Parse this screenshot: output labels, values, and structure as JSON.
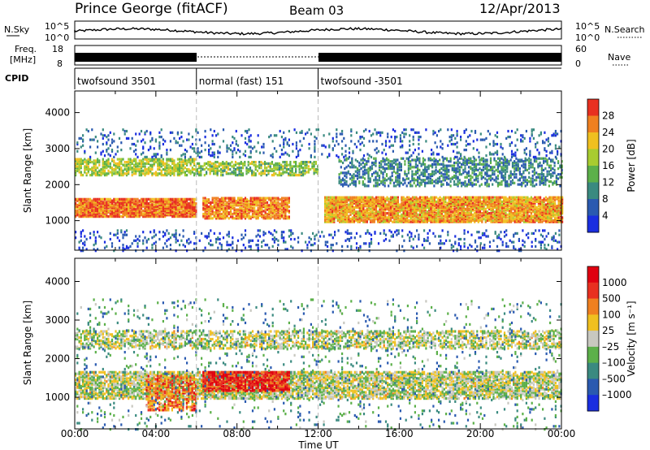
{
  "header": {
    "station": "Prince George (fitACF)",
    "beam": "Beam 03",
    "date": "12/Apr/2013"
  },
  "strips": {
    "nsky_label": "N.Sky",
    "nsky_ticks": [
      "10^5",
      "10^0"
    ],
    "nsearch_label": "N.Search",
    "freq_label_1": "Freq.",
    "freq_label_2": "[MHz]",
    "freq_ticks": [
      "18",
      "8"
    ],
    "nave_ticks": [
      "60",
      "0"
    ],
    "nave_label": "Nave",
    "cpid_label": "CPID",
    "cpid_segments": [
      {
        "label": "twofsound 3501",
        "start_h": 0,
        "end_h": 6.0
      },
      {
        "label": "normal (fast) 151",
        "start_h": 6.0,
        "end_h": 12.0
      },
      {
        "label": "twofsound -3501",
        "start_h": 12.0,
        "end_h": 24.0
      }
    ]
  },
  "chart_data": [
    {
      "type": "heatmap",
      "title": "Power",
      "ylabel": "Slant Range [km]",
      "xlabel": "Time UT",
      "xlim": [
        0,
        24
      ],
      "ylim": [
        180,
        4600
      ],
      "yticks": [
        "1000",
        "2000",
        "3000",
        "4000"
      ],
      "xticks": [
        "00:00",
        "04:00",
        "08:00",
        "12:00",
        "16:00",
        "20:00",
        "00:00"
      ],
      "colorbar": {
        "label": "Power [dB]",
        "ticks": [
          "4",
          "8",
          "12",
          "16",
          "20",
          "24",
          "28"
        ],
        "colors": [
          "#1a2ee0",
          "#2a5ab0",
          "#3a8a80",
          "#5cb04a",
          "#a8cc30",
          "#f0c020",
          "#f08020",
          "#e83020"
        ]
      },
      "bands": [
        {
          "name": "near",
          "t0": 0,
          "t1": 24,
          "r_low": 200,
          "r_high": 800,
          "level": 0.15,
          "density": 0.12
        },
        {
          "name": "main-f",
          "t0": 0,
          "t1": 6,
          "r_low": 1150,
          "r_high": 1650,
          "level": 0.85,
          "density": 0.9
        },
        {
          "name": "main-f2",
          "t0": 12.3,
          "t1": 24,
          "r_low": 1000,
          "r_high": 1700,
          "level": 0.75,
          "density": 0.85
        },
        {
          "name": "day-e",
          "t0": 6.3,
          "t1": 10.6,
          "r_low": 1100,
          "r_high": 1700,
          "level": 0.8,
          "density": 0.75
        },
        {
          "name": "far1",
          "t0": 0,
          "t1": 6,
          "r_low": 2300,
          "r_high": 2750,
          "level": 0.55,
          "density": 0.6
        },
        {
          "name": "far2",
          "t0": 6,
          "t1": 12,
          "r_low": 2300,
          "r_high": 2700,
          "level": 0.5,
          "density": 0.5
        },
        {
          "name": "far3",
          "t0": 13,
          "t1": 24,
          "r_low": 2000,
          "r_high": 2800,
          "level": 0.3,
          "density": 0.4
        },
        {
          "name": "sparse-top",
          "t0": 0,
          "t1": 24,
          "r_low": 2800,
          "r_high": 3600,
          "level": 0.2,
          "density": 0.12
        }
      ]
    },
    {
      "type": "heatmap",
      "title": "Velocity",
      "ylabel": "Slant Range [km]",
      "xlabel": "Time UT",
      "xlim": [
        0,
        24
      ],
      "ylim": [
        180,
        4600
      ],
      "yticks": [
        "1000",
        "2000",
        "3000",
        "4000"
      ],
      "xticks": [
        "00:00",
        "04:00",
        "08:00",
        "12:00",
        "16:00",
        "20:00",
        "00:00"
      ],
      "colorbar": {
        "label": "Velocity [m s⁻¹]",
        "ticks": [
          "1000",
          "500",
          "100",
          "25",
          "–25",
          "–100",
          "–500",
          "–1000"
        ],
        "colors": [
          "#1a2ee0",
          "#2a5ab0",
          "#3a8a80",
          "#5cb04a",
          "#c8c8c0",
          "#f0c020",
          "#f08020",
          "#e83020",
          "#e00010"
        ]
      },
      "bands": [
        {
          "name": "ground",
          "t0": 0,
          "t1": 24,
          "r_low": 1000,
          "r_high": 1700,
          "level": 0.5,
          "density": 0.7
        },
        {
          "name": "ground-far",
          "t0": 0,
          "t1": 24,
          "r_low": 2300,
          "r_high": 2750,
          "level": 0.5,
          "density": 0.5
        },
        {
          "name": "ionos-day",
          "t0": 6.3,
          "t1": 10.6,
          "r_low": 1200,
          "r_high": 1700,
          "level": 0.88,
          "density": 0.8
        },
        {
          "name": "ionos-dawn",
          "t0": 3.5,
          "t1": 6,
          "r_low": 700,
          "r_high": 1600,
          "level": 0.75,
          "density": 0.55
        },
        {
          "name": "sparse",
          "t0": 0,
          "t1": 24,
          "r_low": 200,
          "r_high": 3600,
          "level": 0.3,
          "density": 0.05
        }
      ]
    }
  ]
}
